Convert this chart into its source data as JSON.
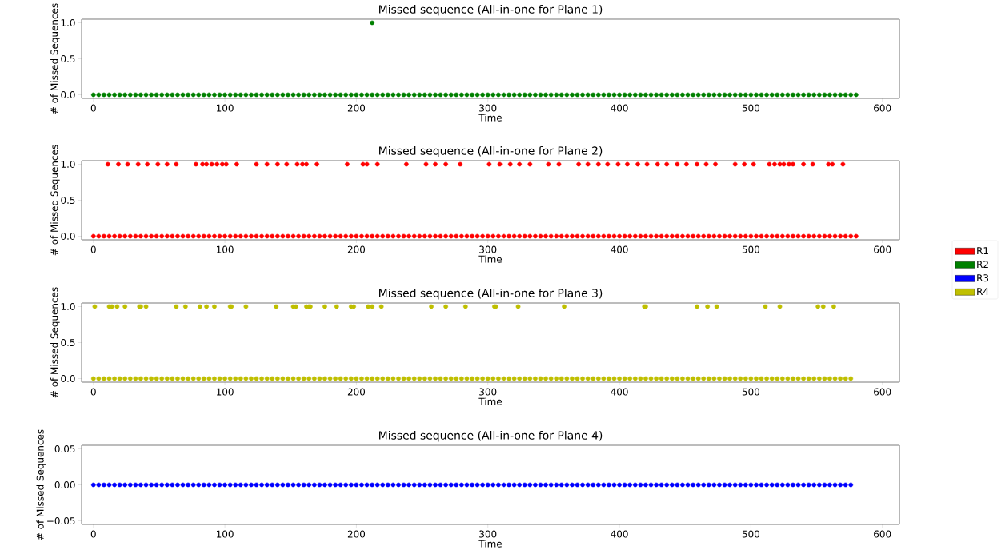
{
  "chart_data": [
    {
      "type": "scatter",
      "title": "Missed sequence (All-in-one for Plane 1)",
      "xlabel": "Time",
      "ylabel": "# of Missed Sequences",
      "marker": "circle",
      "legend": "right",
      "xlim": [
        -9,
        613
      ],
      "xticks": [
        0,
        100,
        200,
        300,
        400,
        500,
        600
      ],
      "ylim": [
        -0.05,
        1.05
      ],
      "yticks": [
        {
          "value": 0,
          "label": "0.0"
        },
        {
          "value": 0.5,
          "label": "0.5"
        },
        {
          "value": 1,
          "label": "1.0"
        }
      ],
      "series": [
        {
          "name": "R2",
          "color": "#008000",
          "x": [
            0,
            4,
            8,
            12,
            16,
            20,
            24,
            28,
            32,
            36,
            40,
            44,
            48,
            52,
            56,
            60,
            64,
            68,
            72,
            76,
            80,
            84,
            88,
            92,
            96,
            100,
            104,
            108,
            112,
            116,
            120,
            124,
            128,
            132,
            136,
            140,
            144,
            148,
            152,
            156,
            160,
            164,
            168,
            172,
            176,
            180,
            184,
            188,
            192,
            196,
            200,
            204,
            208,
            212,
            216,
            220,
            224,
            228,
            232,
            236,
            240,
            244,
            248,
            252,
            256,
            260,
            264,
            268,
            272,
            276,
            280,
            284,
            288,
            292,
            296,
            300,
            304,
            308,
            312,
            316,
            320,
            324,
            328,
            332,
            336,
            340,
            344,
            348,
            352,
            356,
            360,
            364,
            368,
            372,
            376,
            380,
            384,
            388,
            392,
            396,
            400,
            404,
            408,
            412,
            416,
            420,
            424,
            428,
            432,
            436,
            440,
            444,
            448,
            452,
            456,
            460,
            464,
            468,
            472,
            476,
            480,
            484,
            488,
            492,
            496,
            500,
            504,
            508,
            512,
            516,
            520,
            524,
            528,
            532,
            536,
            540,
            544,
            548,
            552,
            556,
            560,
            564,
            568,
            572,
            576,
            580,
            212
          ],
          "values": [
            0,
            0,
            0,
            0,
            0,
            0,
            0,
            0,
            0,
            0,
            0,
            0,
            0,
            0,
            0,
            0,
            0,
            0,
            0,
            0,
            0,
            0,
            0,
            0,
            0,
            0,
            0,
            0,
            0,
            0,
            0,
            0,
            0,
            0,
            0,
            0,
            0,
            0,
            0,
            0,
            0,
            0,
            0,
            0,
            0,
            0,
            0,
            0,
            0,
            0,
            0,
            0,
            0,
            0,
            0,
            0,
            0,
            0,
            0,
            0,
            0,
            0,
            0,
            0,
            0,
            0,
            0,
            0,
            0,
            0,
            0,
            0,
            0,
            0,
            0,
            0,
            0,
            0,
            0,
            0,
            0,
            0,
            0,
            0,
            0,
            0,
            0,
            0,
            0,
            0,
            0,
            0,
            0,
            0,
            0,
            0,
            0,
            0,
            0,
            0,
            0,
            0,
            0,
            0,
            0,
            0,
            0,
            0,
            0,
            0,
            0,
            0,
            0,
            0,
            0,
            0,
            0,
            0,
            0,
            0,
            0,
            0,
            0,
            0,
            0,
            0,
            0,
            0,
            0,
            0,
            0,
            0,
            0,
            0,
            0,
            0,
            0,
            0,
            0,
            0,
            0,
            0,
            0,
            0,
            0,
            0,
            1
          ]
        }
      ]
    },
    {
      "type": "scatter",
      "title": "Missed sequence (All-in-one for Plane 2)",
      "xlabel": "Time",
      "ylabel": "# of Missed Sequences",
      "marker": "circle",
      "legend": "right",
      "xlim": [
        -9,
        613
      ],
      "xticks": [
        0,
        100,
        200,
        300,
        400,
        500,
        600
      ],
      "ylim": [
        -0.05,
        1.05
      ],
      "yticks": [
        {
          "value": 0,
          "label": "0.0"
        },
        {
          "value": 0.5,
          "label": "0.5"
        },
        {
          "value": 1,
          "label": "1.0"
        }
      ],
      "series": [
        {
          "name": "R1",
          "color": "#ff0000",
          "x": [
            0,
            4,
            8,
            12,
            16,
            20,
            24,
            28,
            32,
            36,
            40,
            44,
            48,
            52,
            56,
            60,
            64,
            68,
            72,
            76,
            80,
            84,
            88,
            92,
            96,
            100,
            104,
            108,
            112,
            116,
            120,
            124,
            128,
            132,
            136,
            140,
            144,
            148,
            152,
            156,
            160,
            164,
            168,
            172,
            176,
            180,
            184,
            188,
            192,
            196,
            200,
            204,
            208,
            212,
            216,
            220,
            224,
            228,
            232,
            236,
            240,
            244,
            248,
            252,
            256,
            260,
            264,
            268,
            272,
            276,
            280,
            284,
            288,
            292,
            296,
            300,
            304,
            308,
            312,
            316,
            320,
            324,
            328,
            332,
            336,
            340,
            344,
            348,
            352,
            356,
            360,
            364,
            368,
            372,
            376,
            380,
            384,
            388,
            392,
            396,
            400,
            404,
            408,
            412,
            416,
            420,
            424,
            428,
            432,
            436,
            440,
            444,
            448,
            452,
            456,
            460,
            464,
            468,
            472,
            476,
            480,
            484,
            488,
            492,
            496,
            500,
            504,
            508,
            512,
            516,
            520,
            524,
            528,
            532,
            536,
            540,
            544,
            548,
            552,
            556,
            560,
            564,
            568,
            572,
            576,
            580,
            11,
            19,
            26,
            34,
            41,
            49,
            56,
            63,
            78,
            83,
            86,
            90,
            94,
            98,
            101,
            109,
            124,
            132,
            140,
            147,
            155,
            159,
            162,
            170,
            193,
            205,
            208,
            216,
            238,
            253,
            260,
            268,
            279,
            301,
            309,
            317,
            324,
            332,
            346,
            354,
            369,
            376,
            384,
            391,
            399,
            406,
            414,
            421,
            429,
            436,
            444,
            451,
            459,
            466,
            473,
            488,
            495,
            502,
            514,
            518,
            522,
            525,
            529,
            532,
            540,
            547,
            559,
            562,
            570
          ],
          "values": [
            0,
            0,
            0,
            0,
            0,
            0,
            0,
            0,
            0,
            0,
            0,
            0,
            0,
            0,
            0,
            0,
            0,
            0,
            0,
            0,
            0,
            0,
            0,
            0,
            0,
            0,
            0,
            0,
            0,
            0,
            0,
            0,
            0,
            0,
            0,
            0,
            0,
            0,
            0,
            0,
            0,
            0,
            0,
            0,
            0,
            0,
            0,
            0,
            0,
            0,
            0,
            0,
            0,
            0,
            0,
            0,
            0,
            0,
            0,
            0,
            0,
            0,
            0,
            0,
            0,
            0,
            0,
            0,
            0,
            0,
            0,
            0,
            0,
            0,
            0,
            0,
            0,
            0,
            0,
            0,
            0,
            0,
            0,
            0,
            0,
            0,
            0,
            0,
            0,
            0,
            0,
            0,
            0,
            0,
            0,
            0,
            0,
            0,
            0,
            0,
            0,
            0,
            0,
            0,
            0,
            0,
            0,
            0,
            0,
            0,
            0,
            0,
            0,
            0,
            0,
            0,
            0,
            0,
            0,
            0,
            0,
            0,
            0,
            0,
            0,
            0,
            0,
            0,
            0,
            0,
            0,
            0,
            0,
            0,
            0,
            0,
            0,
            0,
            0,
            0,
            0,
            0,
            0,
            0,
            0,
            0,
            1,
            1,
            1,
            1,
            1,
            1,
            1,
            1,
            1,
            1,
            1,
            1,
            1,
            1,
            1,
            1,
            1,
            1,
            1,
            1,
            1,
            1,
            1,
            1,
            1,
            1,
            1,
            1,
            1,
            1,
            1,
            1,
            1,
            1,
            1,
            1,
            1,
            1,
            1,
            1,
            1,
            1,
            1,
            1,
            1,
            1,
            1,
            1,
            1,
            1,
            1,
            1,
            1,
            1,
            1,
            1,
            1,
            1,
            1,
            1,
            1,
            1,
            1,
            1,
            1,
            1,
            1,
            1,
            1
          ]
        }
      ]
    },
    {
      "type": "scatter",
      "title": "Missed sequence (All-in-one for Plane 3)",
      "xlabel": "Time",
      "ylabel": "# of Missed Sequences",
      "marker": "circle",
      "legend": "right",
      "xlim": [
        -9,
        613
      ],
      "xticks": [
        0,
        100,
        200,
        300,
        400,
        500,
        600
      ],
      "ylim": [
        -0.05,
        1.05
      ],
      "yticks": [
        {
          "value": 0,
          "label": "0.0"
        },
        {
          "value": 0.5,
          "label": "0.5"
        },
        {
          "value": 1,
          "label": "1.0"
        }
      ],
      "series": [
        {
          "name": "R4",
          "color": "#bfbf00",
          "x": [
            0,
            4,
            8,
            12,
            16,
            20,
            24,
            28,
            32,
            36,
            40,
            44,
            48,
            52,
            56,
            60,
            64,
            68,
            72,
            76,
            80,
            84,
            88,
            92,
            96,
            100,
            104,
            108,
            112,
            116,
            120,
            124,
            128,
            132,
            136,
            140,
            144,
            148,
            152,
            156,
            160,
            164,
            168,
            172,
            176,
            180,
            184,
            188,
            192,
            196,
            200,
            204,
            208,
            212,
            216,
            220,
            224,
            228,
            232,
            236,
            240,
            244,
            248,
            252,
            256,
            260,
            264,
            268,
            272,
            276,
            280,
            284,
            288,
            292,
            296,
            300,
            304,
            308,
            312,
            316,
            320,
            324,
            328,
            332,
            336,
            340,
            344,
            348,
            352,
            356,
            360,
            364,
            368,
            372,
            376,
            380,
            384,
            388,
            392,
            396,
            400,
            404,
            408,
            412,
            416,
            420,
            424,
            428,
            432,
            436,
            440,
            444,
            448,
            452,
            456,
            460,
            464,
            468,
            472,
            476,
            480,
            484,
            488,
            492,
            496,
            500,
            504,
            508,
            512,
            516,
            520,
            524,
            528,
            532,
            536,
            540,
            544,
            548,
            552,
            556,
            560,
            564,
            568,
            572,
            576,
            1,
            12,
            14,
            18,
            24,
            35,
            36,
            40,
            63,
            70,
            81,
            86,
            92,
            104,
            105,
            116,
            139,
            152,
            154,
            162,
            164,
            165,
            176,
            185,
            196,
            198,
            209,
            212,
            219,
            257,
            268,
            283,
            305,
            306,
            323,
            358,
            419,
            420,
            459,
            467,
            474,
            511,
            522,
            551,
            555,
            563
          ],
          "values": [
            0,
            0,
            0,
            0,
            0,
            0,
            0,
            0,
            0,
            0,
            0,
            0,
            0,
            0,
            0,
            0,
            0,
            0,
            0,
            0,
            0,
            0,
            0,
            0,
            0,
            0,
            0,
            0,
            0,
            0,
            0,
            0,
            0,
            0,
            0,
            0,
            0,
            0,
            0,
            0,
            0,
            0,
            0,
            0,
            0,
            0,
            0,
            0,
            0,
            0,
            0,
            0,
            0,
            0,
            0,
            0,
            0,
            0,
            0,
            0,
            0,
            0,
            0,
            0,
            0,
            0,
            0,
            0,
            0,
            0,
            0,
            0,
            0,
            0,
            0,
            0,
            0,
            0,
            0,
            0,
            0,
            0,
            0,
            0,
            0,
            0,
            0,
            0,
            0,
            0,
            0,
            0,
            0,
            0,
            0,
            0,
            0,
            0,
            0,
            0,
            0,
            0,
            0,
            0,
            0,
            0,
            0,
            0,
            0,
            0,
            0,
            0,
            0,
            0,
            0,
            0,
            0,
            0,
            0,
            0,
            0,
            0,
            0,
            0,
            0,
            0,
            0,
            0,
            0,
            0,
            0,
            0,
            0,
            0,
            0,
            0,
            0,
            0,
            0,
            0,
            0,
            0,
            0,
            0,
            0,
            1,
            1,
            1,
            1,
            1,
            1,
            1,
            1,
            1,
            1,
            1,
            1,
            1,
            1,
            1,
            1,
            1,
            1,
            1,
            1,
            1,
            1,
            1,
            1,
            1,
            1,
            1,
            1,
            1,
            1,
            1,
            1,
            1,
            1,
            1,
            1,
            1,
            1,
            1,
            1,
            1,
            1,
            1,
            1,
            1,
            1
          ]
        }
      ]
    },
    {
      "type": "scatter",
      "title": "Missed sequence (All-in-one for Plane 4)",
      "xlabel": "Time",
      "ylabel": "# of Missed Sequences",
      "marker": "circle",
      "legend": "right",
      "xlim": [
        -9,
        613
      ],
      "xticks": [
        0,
        100,
        200,
        300,
        400,
        500,
        600
      ],
      "ylim": [
        -0.055,
        0.055
      ],
      "yticks": [
        {
          "value": -0.05,
          "label": "−0.05"
        },
        {
          "value": 0,
          "label": "0.00"
        },
        {
          "value": 0.05,
          "label": "0.05"
        }
      ],
      "series": [
        {
          "name": "R3",
          "color": "#0000ff",
          "x": [
            0,
            4,
            8,
            12,
            16,
            20,
            24,
            28,
            32,
            36,
            40,
            44,
            48,
            52,
            56,
            60,
            64,
            68,
            72,
            76,
            80,
            84,
            88,
            92,
            96,
            100,
            104,
            108,
            112,
            116,
            120,
            124,
            128,
            132,
            136,
            140,
            144,
            148,
            152,
            156,
            160,
            164,
            168,
            172,
            176,
            180,
            184,
            188,
            192,
            196,
            200,
            204,
            208,
            212,
            216,
            220,
            224,
            228,
            232,
            236,
            240,
            244,
            248,
            252,
            256,
            260,
            264,
            268,
            272,
            276,
            280,
            284,
            288,
            292,
            296,
            300,
            304,
            308,
            312,
            316,
            320,
            324,
            328,
            332,
            336,
            340,
            344,
            348,
            352,
            356,
            360,
            364,
            368,
            372,
            376,
            380,
            384,
            388,
            392,
            396,
            400,
            404,
            408,
            412,
            416,
            420,
            424,
            428,
            432,
            436,
            440,
            444,
            448,
            452,
            456,
            460,
            464,
            468,
            472,
            476,
            480,
            484,
            488,
            492,
            496,
            500,
            504,
            508,
            512,
            516,
            520,
            524,
            528,
            532,
            536,
            540,
            544,
            548,
            552,
            556,
            560,
            564,
            568,
            572,
            576
          ],
          "values": [
            0,
            0,
            0,
            0,
            0,
            0,
            0,
            0,
            0,
            0,
            0,
            0,
            0,
            0,
            0,
            0,
            0,
            0,
            0,
            0,
            0,
            0,
            0,
            0,
            0,
            0,
            0,
            0,
            0,
            0,
            0,
            0,
            0,
            0,
            0,
            0,
            0,
            0,
            0,
            0,
            0,
            0,
            0,
            0,
            0,
            0,
            0,
            0,
            0,
            0,
            0,
            0,
            0,
            0,
            0,
            0,
            0,
            0,
            0,
            0,
            0,
            0,
            0,
            0,
            0,
            0,
            0,
            0,
            0,
            0,
            0,
            0,
            0,
            0,
            0,
            0,
            0,
            0,
            0,
            0,
            0,
            0,
            0,
            0,
            0,
            0,
            0,
            0,
            0,
            0,
            0,
            0,
            0,
            0,
            0,
            0,
            0,
            0,
            0,
            0,
            0,
            0,
            0,
            0,
            0,
            0,
            0,
            0,
            0,
            0,
            0,
            0,
            0,
            0,
            0,
            0,
            0,
            0,
            0,
            0,
            0,
            0,
            0,
            0,
            0,
            0,
            0,
            0,
            0,
            0,
            0,
            0,
            0,
            0,
            0,
            0,
            0,
            0,
            0,
            0,
            0,
            0,
            0,
            0,
            0
          ]
        }
      ]
    }
  ]
}
